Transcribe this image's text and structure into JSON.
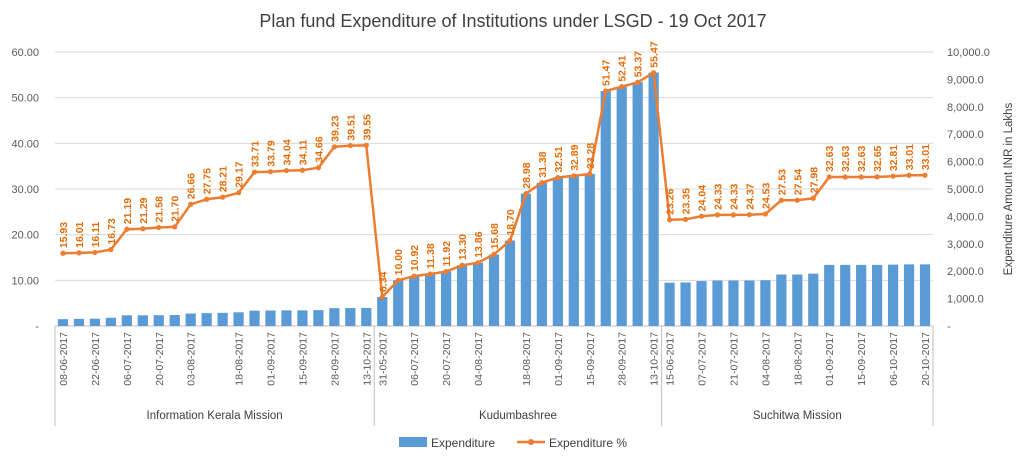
{
  "chart_data": {
    "type": "bar",
    "title": "Plan fund Expenditure of Institutions under LSGD - 19 Oct 2017",
    "y_left": {
      "ticks": [
        "-",
        "10.00",
        "20.00",
        "30.00",
        "40.00",
        "50.00",
        "60.00"
      ],
      "range": [
        0,
        60
      ]
    },
    "y_right": {
      "label": "Expenditure Amount INR in Lakhs",
      "ticks": [
        "-",
        "1,000.0",
        "2,000.0",
        "3,000.0",
        "4,000.0",
        "5,000.0",
        "6,000.0",
        "7,000.0",
        "8,000.0",
        "9,000.0",
        "10,000.0"
      ],
      "range": [
        0,
        10000
      ]
    },
    "colors": {
      "bar": "#5b9bd5",
      "line": "#ed7d31",
      "label": "#e46c0a"
    },
    "legend": {
      "position": "bottom",
      "items": [
        {
          "name": "Expenditure",
          "kind": "bar"
        },
        {
          "name": "Expenditure %",
          "kind": "line"
        }
      ]
    },
    "grid": true,
    "groups": [
      {
        "name": "Information Kerala Mission",
        "tick_labels": [
          "08-06-2017",
          "22-06-2017",
          "06-07-2017",
          "20-07-2017",
          "03-08-2017",
          "18-08-2017",
          "01-09-2017",
          "15-09-2017",
          "28-09-2017",
          "13-10-2017"
        ],
        "percent": [
          15.93,
          16.01,
          16.11,
          16.73,
          21.19,
          21.29,
          21.58,
          21.7,
          26.66,
          27.75,
          28.21,
          29.17,
          33.71,
          33.79,
          34.04,
          34.11,
          34.66,
          39.23,
          39.51,
          39.55
        ],
        "expenditure": [
          250,
          260,
          265,
          300,
          390,
          390,
          395,
          400,
          455,
          470,
          480,
          500,
          560,
          565,
          570,
          570,
          580,
          650,
          655,
          660
        ]
      },
      {
        "name": "Kudumbashree",
        "tick_labels": [
          "31-05-2017",
          "06-07-2017",
          "20-07-2017",
          "04-08-2017",
          "18-08-2017",
          "01-09-2017",
          "15-09-2017",
          "28-09-2017",
          "13-10-2017"
        ],
        "percent": [
          6.34,
          10.0,
          10.92,
          11.38,
          11.92,
          13.3,
          13.86,
          15.68,
          18.7,
          28.98,
          31.38,
          32.51,
          32.89,
          33.28,
          51.47,
          52.41,
          53.37,
          55.47
        ],
        "expenditure": [
          1060,
          1670,
          1820,
          1900,
          1990,
          2220,
          2310,
          2610,
          3120,
          4830,
          5230,
          5420,
          5480,
          5550,
          8580,
          8740,
          8900,
          9250
        ]
      },
      {
        "name": "Suchitwa Mission",
        "tick_labels": [
          "15-06-2017",
          "07-07-2017",
          "21-07-2017",
          "04-08-2017",
          "18-08-2017",
          "01-09-2017",
          "15-09-2017",
          "06-10-2017",
          "20-10-2017"
        ],
        "percent": [
          23.26,
          23.35,
          24.04,
          24.33,
          24.33,
          24.37,
          24.53,
          27.53,
          27.54,
          27.98,
          32.63,
          32.63,
          32.63,
          32.65,
          32.81,
          33.01,
          33.01
        ],
        "expenditure": [
          1580,
          1590,
          1640,
          1660,
          1660,
          1660,
          1670,
          1880,
          1880,
          1910,
          2230,
          2230,
          2230,
          2230,
          2240,
          2250,
          2250
        ]
      }
    ]
  }
}
